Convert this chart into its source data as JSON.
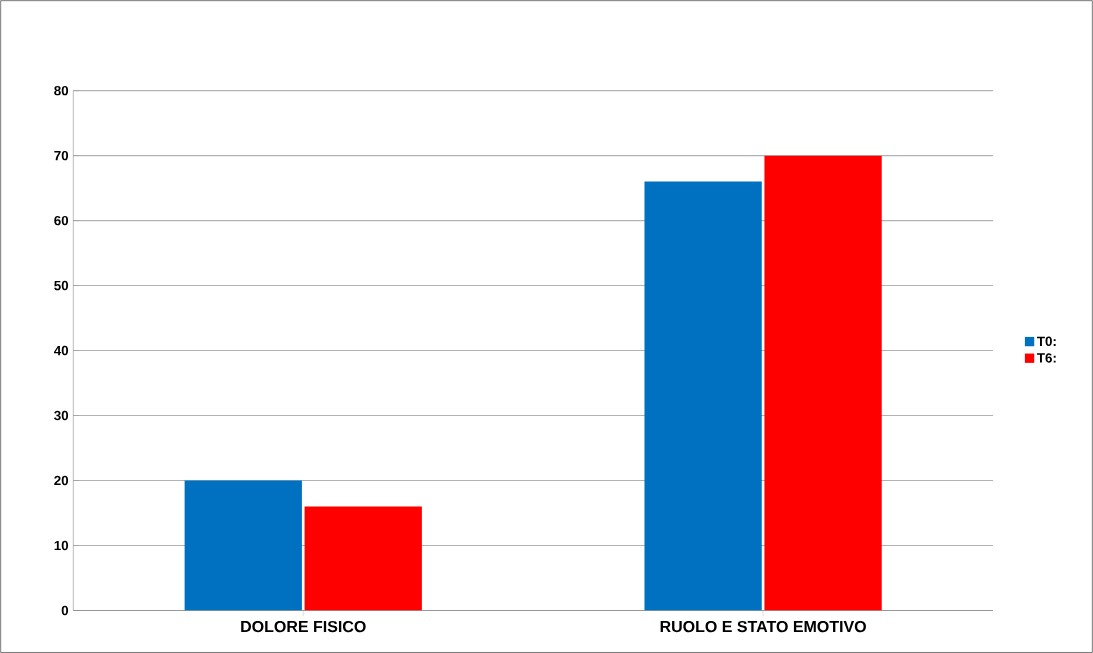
{
  "chart_data": {
    "type": "bar",
    "categories": [
      "DOLORE FISICO",
      "RUOLO E STATO EMOTIVO"
    ],
    "series": [
      {
        "name": "T0:",
        "color": "#0070c0",
        "values": [
          20,
          66
        ]
      },
      {
        "name": "T6:",
        "color": "#ff0000",
        "values": [
          16,
          70
        ]
      }
    ],
    "ylim": [
      0,
      80
    ],
    "yticks": [
      0,
      10,
      20,
      30,
      40,
      50,
      60,
      70,
      80
    ],
    "grid": "y",
    "legend": "right"
  }
}
